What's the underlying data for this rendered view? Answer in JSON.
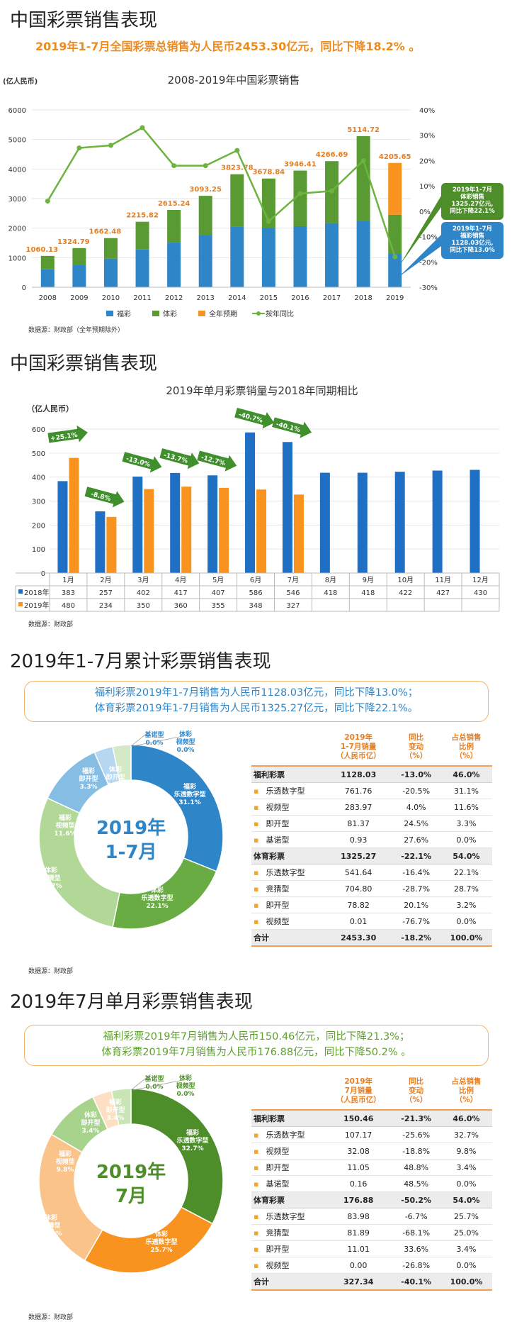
{
  "section1": {
    "title": "中国彩票销售表现",
    "headline": "2019年1-7月全国彩票总销售为人民币2453.30亿元，同比下降18.2% 。",
    "chart_data": {
      "type": "bar",
      "title": "2008-2019年中国彩票销售",
      "ylabel": "(亿人民币)",
      "ylim": [
        0,
        6000
      ],
      "y2lim": [
        -30,
        40
      ],
      "categories": [
        "2008",
        "2009",
        "2010",
        "2011",
        "2012",
        "2013",
        "2014",
        "2015",
        "2016",
        "2017",
        "2018",
        "2019"
      ],
      "series": [
        {
          "name": "福彩",
          "color": "#2e86c9",
          "values": [
            604,
            757,
            968,
            1278,
            1510,
            1765,
            2060,
            2015,
            2065,
            2170,
            2245,
            1128.03
          ]
        },
        {
          "name": "体彩",
          "color": "#5a9a33",
          "values": [
            456.13,
            567.79,
            694.48,
            937.82,
            1105.24,
            1328.25,
            1763.78,
            1663.84,
            1881.41,
            2096.69,
            2869.72,
            1325.27
          ]
        },
        {
          "name": "全年预期",
          "color": "#f7931e",
          "values": [
            0,
            0,
            0,
            0,
            0,
            0,
            0,
            0,
            0,
            0,
            0,
            1752.35
          ]
        },
        {
          "name": "按年同比",
          "color": "#6db33f",
          "values": [
            4,
            25,
            26,
            33,
            18,
            18,
            24,
            -4,
            7,
            8,
            20,
            -18
          ]
        }
      ],
      "totals": [
        "1060.13",
        "1324.79",
        "1662.48",
        "2215.82",
        "2615.24",
        "3093.25",
        "3823.78",
        "3678.84",
        "3946.41",
        "4266.69",
        "5114.72",
        "4205.65"
      ],
      "yticks": [
        "0",
        "1000",
        "2000",
        "3000",
        "4000",
        "5000",
        "6000"
      ],
      "y2ticks": [
        "40%",
        "30%",
        "20%",
        "10%",
        "0%",
        "-10%",
        "-20%",
        "-30%"
      ]
    },
    "callout_tc": "2019年1-7月\n体彩销售\n1325.27亿元,\n同比下降22.1%",
    "callout_fc": "2019年1-7月\n福彩销售\n1128.03亿元,\n同比下降13.0%",
    "source": "数据源：财政部（全年预期除外）"
  },
  "section2": {
    "title": "中国彩票销售表现",
    "chart_data": {
      "type": "bar",
      "title": "2019年单月彩票销量与2018年同期相比",
      "ylabel": "（亿人民币）",
      "ylim": [
        0,
        600
      ],
      "categories": [
        "1月",
        "2月",
        "3月",
        "4月",
        "5月",
        "6月",
        "7月",
        "8月",
        "9月",
        "10月",
        "11月",
        "12月"
      ],
      "series": [
        {
          "name": "2018年",
          "color": "#1f6fc5",
          "values": [
            383,
            257,
            402,
            417,
            407,
            586,
            546,
            418,
            418,
            422,
            427,
            430
          ]
        },
        {
          "name": "2019年",
          "color": "#f7931e",
          "values": [
            480,
            234,
            350,
            360,
            355,
            348,
            327,
            null,
            null,
            null,
            null,
            null
          ]
        }
      ],
      "changes": [
        "+25.1%",
        "-8.8%",
        "-13.0%",
        "-13.7%",
        "-12.7%",
        "-40.7%",
        "-40.1%"
      ],
      "yticks": [
        "0",
        "100",
        "200",
        "300",
        "400",
        "500",
        "600"
      ]
    },
    "row_labels": [
      "2018年",
      "2019年"
    ],
    "row_2018": [
      "383",
      "257",
      "402",
      "417",
      "407",
      "586",
      "546",
      "418",
      "418",
      "422",
      "427",
      "430"
    ],
    "row_2019": [
      "480",
      "234",
      "350",
      "360",
      "355",
      "348",
      "327",
      "",
      "",
      "",
      "",
      ""
    ],
    "source": "数据源：财政部"
  },
  "section3": {
    "title": "2019年1-7月累计彩票销售表现",
    "box_line1": "福利彩票2019年1-7月销售为人民币1128.03亿元，同比下降13.0%；",
    "box_line2": "体育彩票2019年1-7月销售为人民币1325.27亿元，同比下降22.1%。",
    "center_line1": "2019年",
    "center_line2": "1-7月",
    "chart_data": {
      "type": "pie",
      "slices": [
        {
          "name": "福彩乐透数字型",
          "value": 31.1,
          "color": "#2e86c9"
        },
        {
          "name": "体彩乐透数字型",
          "value": 22.1,
          "color": "#6aac44"
        },
        {
          "name": "体彩竞猜型",
          "value": 28.7,
          "color": "#b1d896"
        },
        {
          "name": "福彩视频型",
          "value": 11.6,
          "color": "#85bde3"
        },
        {
          "name": "福彩即开型",
          "value": 3.3,
          "color": "#b7d6ef"
        },
        {
          "name": "体彩即开型",
          "value": 3.2,
          "color": "#d4e9c6"
        },
        {
          "name": "福彩基诺型",
          "value": 0.0,
          "color": "#2e86c9"
        },
        {
          "name": "体彩视频型",
          "value": 0.0,
          "color": "#6aac44"
        }
      ]
    },
    "labels": [
      {
        "l1": "福彩",
        "l2": "乐透数字型",
        "l3": "31.1%"
      },
      {
        "l1": "体彩",
        "l2": "乐透数字型",
        "l3": "22.1%"
      },
      {
        "l1": "体彩",
        "l2": "竞猜型",
        "l3": "28.7%"
      },
      {
        "l1": "福彩",
        "l2": "视频型",
        "l3": "11.6%"
      },
      {
        "l1": "福彩",
        "l2": "即开型",
        "l3": "3.3%"
      },
      {
        "l1": "体彩",
        "l2": "即开型",
        "l3": "3.2%"
      },
      {
        "l1": "福彩",
        "l2": "基诺型",
        "l3": "0.0%"
      },
      {
        "l1": "体彩",
        "l2": "视频型",
        "l3": "0.0%"
      }
    ],
    "table": {
      "headers": [
        "2019年\n1-7月销量\n（人民币亿）",
        "同比\n变动\n（%）",
        "占总销售\n比例\n（%）"
      ],
      "rows": [
        {
          "kind": "group",
          "name": "福利彩票",
          "v1": "1128.03",
          "v2": "-13.0%",
          "v3": "46.0%"
        },
        {
          "kind": "item",
          "name": "乐透数字型",
          "v1": "761.76",
          "v2": "-20.5%",
          "v3": "31.1%"
        },
        {
          "kind": "item",
          "name": "视频型",
          "v1": "283.97",
          "v2": "4.0%",
          "v3": "11.6%"
        },
        {
          "kind": "item",
          "name": "即开型",
          "v1": "81.37",
          "v2": "24.5%",
          "v3": "3.3%"
        },
        {
          "kind": "item",
          "name": "基诺型",
          "v1": "0.93",
          "v2": "27.6%",
          "v3": "0.0%"
        },
        {
          "kind": "group",
          "name": "体育彩票",
          "v1": "1325.27",
          "v2": "-22.1%",
          "v3": "54.0%"
        },
        {
          "kind": "item",
          "name": "乐透数字型",
          "v1": "541.64",
          "v2": "-16.4%",
          "v3": "22.1%"
        },
        {
          "kind": "item",
          "name": "竞猜型",
          "v1": "704.80",
          "v2": "-28.7%",
          "v3": "28.7%"
        },
        {
          "kind": "item",
          "name": "即开型",
          "v1": "78.82",
          "v2": "20.1%",
          "v3": "3.2%"
        },
        {
          "kind": "item",
          "name": "视频型",
          "v1": "0.01",
          "v2": "-76.7%",
          "v3": "0.0%"
        },
        {
          "kind": "total",
          "name": "合计",
          "v1": "2453.30",
          "v2": "-18.2%",
          "v3": "100.0%"
        }
      ]
    },
    "source": "数据源：财政部"
  },
  "section4": {
    "title": "2019年7月单月彩票销售表现",
    "box_line1": "福利彩票2019年7月销售为人民币150.46亿元，同比下降21.3%；",
    "box_line2": "体育彩票2019年7月销售为人民币176.88亿元，同比下降50.2% 。",
    "center_line1": "2019年",
    "center_line2": "7月",
    "chart_data": {
      "type": "pie",
      "slices": [
        {
          "name": "福彩乐透数字型",
          "value": 32.7,
          "color": "#4e8e2a"
        },
        {
          "name": "体彩乐透数字型",
          "value": 25.7,
          "color": "#f7931e"
        },
        {
          "name": "体彩竞猜型",
          "value": 25.0,
          "color": "#f9c38a"
        },
        {
          "name": "福彩视频型",
          "value": 9.8,
          "color": "#a8d38d"
        },
        {
          "name": "福彩即开型",
          "value": 3.4,
          "color": "#fde0c4"
        },
        {
          "name": "体彩即开型",
          "value": 3.4,
          "color": "#c9e4b5"
        },
        {
          "name": "福彩基诺型",
          "value": 0.0,
          "color": "#4e8e2a"
        },
        {
          "name": "体彩视频型",
          "value": 0.0,
          "color": "#f7931e"
        }
      ]
    },
    "labels": [
      {
        "l1": "福彩",
        "l2": "乐透数字型",
        "l3": "32.7%"
      },
      {
        "l1": "体彩",
        "l2": "乐透数字型",
        "l3": "25.7%"
      },
      {
        "l1": "体彩",
        "l2": "竞猜型",
        "l3": "25.0%"
      },
      {
        "l1": "福彩",
        "l2": "视频型",
        "l3": "9.8%"
      },
      {
        "l1": "体彩",
        "l2": "即开型",
        "l3": "3.4%"
      },
      {
        "l1": "福彩",
        "l2": "即开型",
        "l3": "3.4%"
      },
      {
        "l1": "福彩",
        "l2": "基诺型",
        "l3": "0.0%"
      },
      {
        "l1": "体彩",
        "l2": "视频型",
        "l3": "0.0%"
      }
    ],
    "table": {
      "headers": [
        "2019年\n7月销量\n（人民币亿）",
        "同比\n变动\n（%）",
        "占总销售\n比例\n（%）"
      ],
      "rows": [
        {
          "kind": "group",
          "name": "福利彩票",
          "v1": "150.46",
          "v2": "-21.3%",
          "v3": "46.0%"
        },
        {
          "kind": "item",
          "name": "乐透数字型",
          "v1": "107.17",
          "v2": "-25.6%",
          "v3": "32.7%"
        },
        {
          "kind": "item",
          "name": "视频型",
          "v1": "32.08",
          "v2": "-18.8%",
          "v3": "9.8%"
        },
        {
          "kind": "item",
          "name": "即开型",
          "v1": "11.05",
          "v2": "48.8%",
          "v3": "3.4%"
        },
        {
          "kind": "item",
          "name": "基诺型",
          "v1": "0.16",
          "v2": "48.5%",
          "v3": "0.0%"
        },
        {
          "kind": "group",
          "name": "体育彩票",
          "v1": "176.88",
          "v2": "-50.2%",
          "v3": "54.0%"
        },
        {
          "kind": "item",
          "name": "乐透数字型",
          "v1": "83.98",
          "v2": "-6.7%",
          "v3": "25.7%"
        },
        {
          "kind": "item",
          "name": "竞猜型",
          "v1": "81.89",
          "v2": "-68.1%",
          "v3": "25.0%"
        },
        {
          "kind": "item",
          "name": "即开型",
          "v1": "11.01",
          "v2": "33.6%",
          "v3": "3.4%"
        },
        {
          "kind": "item",
          "name": "视频型",
          "v1": "0.00",
          "v2": "-26.8%",
          "v3": "0.0%"
        },
        {
          "kind": "total",
          "name": "合计",
          "v1": "327.34",
          "v2": "-40.1%",
          "v3": "100.0%"
        }
      ]
    },
    "source": "数据源：财政部"
  }
}
